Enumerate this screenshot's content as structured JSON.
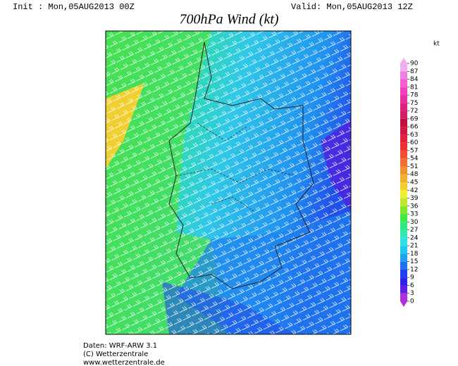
{
  "header": {
    "init": "Init : Mon,05AUG2013 00Z",
    "valid": "Valid: Mon,05AUG2013 12Z",
    "title": "700hPa Wind (kt)"
  },
  "colorbar": {
    "unit": "kt",
    "ticks": [
      0,
      3,
      6,
      9,
      12,
      15,
      18,
      21,
      24,
      27,
      30,
      33,
      36,
      39,
      42,
      45,
      48,
      51,
      54,
      57,
      60,
      63,
      66,
      69,
      72,
      75,
      78,
      81,
      84,
      87,
      90
    ],
    "colors": [
      "#b030e0",
      "#6020e0",
      "#3020e8",
      "#2040f0",
      "#2070f0",
      "#20a0f0",
      "#20c8f0",
      "#30e0e0",
      "#30e8b0",
      "#30e880",
      "#40e840",
      "#80e830",
      "#c0e830",
      "#f0f030",
      "#f0d030",
      "#f0b030",
      "#f09030",
      "#f07030",
      "#f05030",
      "#f03030",
      "#e02040",
      "#d01840",
      "#c01040",
      "#d02060",
      "#e02080",
      "#e830a0",
      "#f040c0",
      "#f060d0",
      "#f080e0",
      "#f0b0f0"
    ]
  },
  "footer": {
    "line1": "Daten: WRF-ARW 3.1",
    "line2": "(C) Wetterzentrale",
    "line3": "www.wetterzentrale.de"
  }
}
